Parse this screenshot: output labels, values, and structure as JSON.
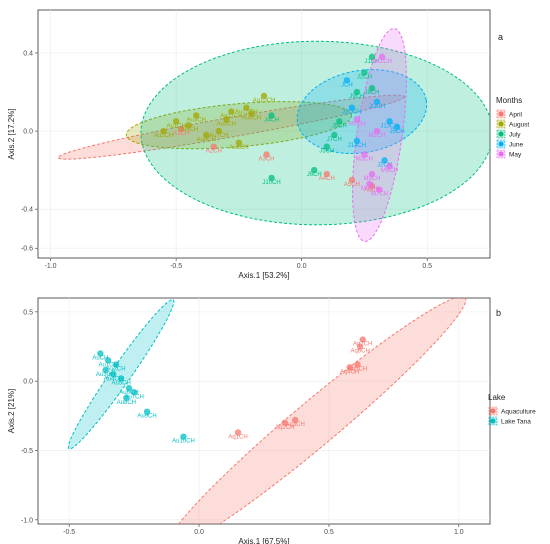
{
  "chart_data": [
    {
      "panel_label": "a",
      "type": "scatter",
      "xlabel": "Axis.1   [53.2%]",
      "ylabel": "Axis.2   [17.2%]",
      "xlim": [
        -1.05,
        0.75
      ],
      "ylim": [
        -0.65,
        0.62
      ],
      "x_ticks": [
        -1.0,
        -0.5,
        0.0,
        0.5
      ],
      "x_tick_labels": [
        "-1.0",
        "-0.5",
        "0.0",
        "0.5"
      ],
      "y_ticks": [
        -0.6,
        -0.4,
        0.0,
        0.4
      ],
      "y_tick_labels": [
        "-0.6",
        "-0.4",
        "0.0",
        "0.4"
      ],
      "grid": true,
      "legend_title": "Months",
      "legend_position": "right",
      "ellipses": [
        {
          "group": "April",
          "color": "#f8766d",
          "cx": -0.28,
          "cy": 0.02,
          "rx": 0.7,
          "ry": 0.05,
          "angle": -10
        },
        {
          "group": "August",
          "color": "#a3a500",
          "cx": -0.25,
          "cy": 0.03,
          "rx": 0.45,
          "ry": 0.11,
          "angle": -5
        },
        {
          "group": "July",
          "color": "#00bf7d",
          "cx": 0.06,
          "cy": -0.01,
          "rx": 0.7,
          "ry": 0.47,
          "angle": 0
        },
        {
          "group": "June",
          "color": "#00b0f6",
          "cx": 0.24,
          "cy": 0.1,
          "rx": 0.26,
          "ry": 0.21,
          "angle": -10
        },
        {
          "group": "May",
          "color": "#e76bf3",
          "cx": 0.31,
          "cy": -0.02,
          "rx": 0.09,
          "ry": 0.55,
          "angle": 8
        }
      ],
      "series": [
        {
          "name": "April",
          "color": "#f8766d",
          "points": [
            {
              "x": -0.48,
              "y": 0.01,
              "label": "A1CH"
            },
            {
              "x": -0.35,
              "y": -0.08,
              "label": "A2CH"
            },
            {
              "x": -0.14,
              "y": -0.12,
              "label": "A3CH"
            },
            {
              "x": 0.1,
              "y": -0.22,
              "label": "A4CH"
            },
            {
              "x": 0.2,
              "y": -0.25,
              "label": "A5CH"
            },
            {
              "x": 0.28,
              "y": -0.28,
              "label": "A6CH"
            }
          ]
        },
        {
          "name": "August",
          "color": "#a3a500",
          "points": [
            {
              "x": -0.5,
              "y": 0.05,
              "label": "Au1CH"
            },
            {
              "x": -0.55,
              "y": 0.0,
              "label": "Au2CH"
            },
            {
              "x": -0.42,
              "y": 0.08,
              "label": "Au3CH"
            },
            {
              "x": -0.38,
              "y": -0.02,
              "label": "Au4CH"
            },
            {
              "x": -0.3,
              "y": 0.06,
              "label": "Au5CH"
            },
            {
              "x": -0.25,
              "y": -0.06,
              "label": "Au6CH"
            },
            {
              "x": -0.33,
              "y": 0.0,
              "label": "Au7CH"
            },
            {
              "x": -0.45,
              "y": 0.03,
              "label": "Au8CH"
            },
            {
              "x": -0.2,
              "y": 0.09,
              "label": "Au9CH"
            },
            {
              "x": -0.15,
              "y": 0.18,
              "label": "Au10CH"
            },
            {
              "x": -0.28,
              "y": 0.1,
              "label": "Au11CH"
            },
            {
              "x": -0.22,
              "y": 0.12,
              "label": "Au12CH"
            }
          ]
        },
        {
          "name": "July",
          "color": "#00bf7d",
          "points": [
            {
              "x": 0.28,
              "y": 0.38,
              "label": "J1CH"
            },
            {
              "x": 0.25,
              "y": 0.3,
              "label": "J2CH"
            },
            {
              "x": 0.1,
              "y": -0.08,
              "label": "J3CH"
            },
            {
              "x": -0.12,
              "y": 0.08,
              "label": "J4CH"
            },
            {
              "x": 0.15,
              "y": 0.05,
              "label": "J5CH"
            },
            {
              "x": 0.05,
              "y": -0.2,
              "label": "J6CH"
            },
            {
              "x": 0.13,
              "y": -0.02,
              "label": "J7CH"
            },
            {
              "x": 0.28,
              "y": 0.22,
              "label": "J8CH"
            },
            {
              "x": 0.22,
              "y": 0.2,
              "label": "J9CH"
            },
            {
              "x": -0.12,
              "y": -0.24,
              "label": "J10CH"
            }
          ]
        },
        {
          "name": "June",
          "color": "#00b0f6",
          "points": [
            {
              "x": 0.18,
              "y": 0.26,
              "label": "JCH"
            },
            {
              "x": 0.3,
              "y": 0.15,
              "label": "JOCH"
            },
            {
              "x": 0.2,
              "y": 0.12,
              "label": "J1OCH"
            },
            {
              "x": 0.35,
              "y": 0.05,
              "label": "J13CH"
            },
            {
              "x": 0.33,
              "y": -0.15,
              "label": "J2CH"
            },
            {
              "x": 0.22,
              "y": -0.05,
              "label": "J14CH"
            },
            {
              "x": 0.38,
              "y": 0.02,
              "label": "J5CH"
            }
          ]
        },
        {
          "name": "May",
          "color": "#e76bf3",
          "points": [
            {
              "x": 0.32,
              "y": 0.38,
              "label": "M11CH"
            },
            {
              "x": 0.3,
              "y": 0.0,
              "label": "M2CH"
            },
            {
              "x": 0.25,
              "y": -0.12,
              "label": "M3CH"
            },
            {
              "x": 0.35,
              "y": -0.18,
              "label": "M5CH"
            },
            {
              "x": 0.27,
              "y": -0.27,
              "label": "M6CH"
            },
            {
              "x": 0.31,
              "y": -0.3,
              "label": "M7CH"
            },
            {
              "x": 0.22,
              "y": 0.06,
              "label": "M8CH"
            },
            {
              "x": 0.28,
              "y": -0.22,
              "label": "M9CH"
            }
          ]
        }
      ]
    },
    {
      "panel_label": "b",
      "type": "scatter",
      "xlabel": "Axis.1   [67.5%]",
      "ylabel": "Axis.2   [21%]",
      "xlim": [
        -0.62,
        1.12
      ],
      "ylim": [
        -1.03,
        0.6
      ],
      "x_ticks": [
        -0.5,
        0.0,
        0.5,
        1.0
      ],
      "x_tick_labels": [
        "-0.5",
        "0.0",
        "0.5",
        "1.0"
      ],
      "y_ticks": [
        -1.0,
        -0.5,
        0.0,
        0.5
      ],
      "y_tick_labels": [
        "-1.0",
        "-0.5",
        "0.0",
        "0.5"
      ],
      "grid": true,
      "legend_title": "Lake",
      "legend_position": "right",
      "ellipses": [
        {
          "group": "Aquaculture",
          "color": "#f8766d",
          "cx": 0.45,
          "cy": -0.3,
          "rx": 0.75,
          "ry": 0.16,
          "angle": -40
        },
        {
          "group": "Lake Tana",
          "color": "#00bfc4",
          "cx": -0.3,
          "cy": 0.05,
          "rx": 0.35,
          "ry": 0.07,
          "angle": -55
        }
      ],
      "series": [
        {
          "name": "Aquaculture",
          "color": "#f8766d",
          "points": [
            {
              "x": 0.15,
              "y": -0.37,
              "label": "Aq1CH"
            },
            {
              "x": 0.33,
              "y": -0.3,
              "label": "Aq2CH"
            },
            {
              "x": 0.37,
              "y": -0.28,
              "label": "Aq3CH"
            },
            {
              "x": 0.58,
              "y": 0.1,
              "label": "Aq4CH"
            },
            {
              "x": 0.61,
              "y": 0.12,
              "label": "Aq5CH"
            },
            {
              "x": 0.62,
              "y": 0.25,
              "label": "Aq6CH"
            },
            {
              "x": 0.63,
              "y": 0.3,
              "label": "Aq7CH"
            }
          ]
        },
        {
          "name": "Lake Tana",
          "color": "#00bfc4",
          "points": [
            {
              "x": -0.38,
              "y": 0.2,
              "label": "AuCH"
            },
            {
              "x": -0.35,
              "y": 0.15,
              "label": "Au1CH"
            },
            {
              "x": -0.32,
              "y": 0.12,
              "label": "Au2CH"
            },
            {
              "x": -0.36,
              "y": 0.08,
              "label": "Au3CH"
            },
            {
              "x": -0.33,
              "y": 0.05,
              "label": "Au4CH"
            },
            {
              "x": -0.3,
              "y": 0.02,
              "label": "Au5CH"
            },
            {
              "x": -0.27,
              "y": -0.05,
              "label": "Au6CH"
            },
            {
              "x": -0.25,
              "y": -0.08,
              "label": "Au7CH"
            },
            {
              "x": -0.28,
              "y": -0.12,
              "label": "Au8CH"
            },
            {
              "x": -0.2,
              "y": -0.22,
              "label": "Au9CH"
            },
            {
              "x": -0.06,
              "y": -0.4,
              "label": "Au10CH"
            }
          ]
        }
      ]
    }
  ]
}
